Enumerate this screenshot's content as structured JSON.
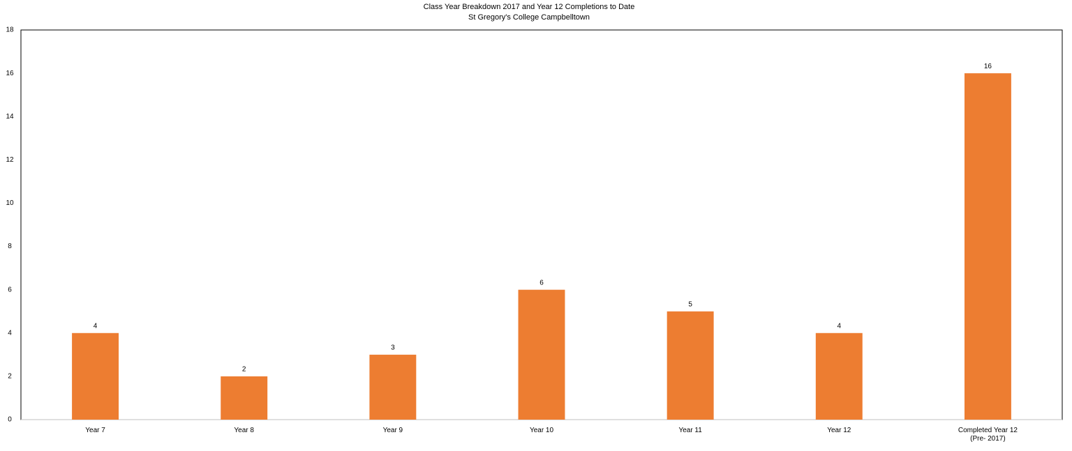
{
  "chart_data": {
    "type": "bar",
    "title": "Class Year Breakdown 2017 and Year 12 Completions to Date",
    "subtitle": "St Gregory's College Campbelltown",
    "categories": [
      "Year 7",
      "Year 8",
      "Year 9",
      "Year 10",
      "Year 11",
      "Year 12",
      "Completed Year 12 (Pre- 2017)"
    ],
    "values": [
      4,
      2,
      3,
      6,
      5,
      4,
      16
    ],
    "color": "#ed7d31",
    "ylim": [
      0,
      18
    ],
    "yticks": [
      0,
      2,
      4,
      6,
      8,
      10,
      12,
      14,
      16,
      18
    ],
    "grid": false
  }
}
